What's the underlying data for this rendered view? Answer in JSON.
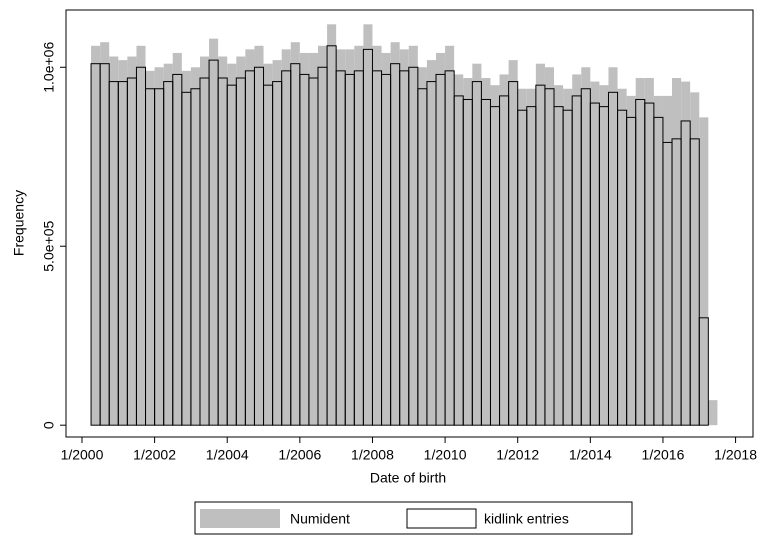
{
  "chart_data": {
    "type": "histogram",
    "x_label": "Date of birth",
    "y_label": "Frequency",
    "bins": [
      2000.25,
      2000.5,
      2000.75,
      2001,
      2001.25,
      2001.5,
      2001.75,
      2002,
      2002.25,
      2002.5,
      2002.75,
      2003,
      2003.25,
      2003.5,
      2003.75,
      2004,
      2004.25,
      2004.5,
      2004.75,
      2005,
      2005.25,
      2005.5,
      2005.75,
      2006,
      2006.25,
      2006.5,
      2006.75,
      2007,
      2007.25,
      2007.5,
      2007.75,
      2008,
      2008.25,
      2008.5,
      2008.75,
      2009,
      2009.25,
      2009.5,
      2009.75,
      2010,
      2010.25,
      2010.5,
      2010.75,
      2011,
      2011.25,
      2011.5,
      2011.75,
      2012,
      2012.25,
      2012.5,
      2012.75,
      2013,
      2013.25,
      2013.5,
      2013.75,
      2014,
      2014.25,
      2014.5,
      2014.75,
      2015,
      2015.25,
      2015.5,
      2015.75,
      2016,
      2016.25,
      2016.5,
      2016.75,
      2017,
      2017.25,
      2017.5
    ],
    "series": [
      {
        "name": "Numident",
        "color": "#bfbfbf",
        "values": [
          1060000,
          1070000,
          1030000,
          1020000,
          1030000,
          1060000,
          990000,
          1000000,
          1010000,
          1040000,
          990000,
          1000000,
          1030000,
          1080000,
          1030000,
          1010000,
          1030000,
          1050000,
          1060000,
          1010000,
          1020000,
          1050000,
          1070000,
          1040000,
          1040000,
          1060000,
          1120000,
          1050000,
          1050000,
          1060000,
          1120000,
          1060000,
          1040000,
          1070000,
          1050000,
          1060000,
          1000000,
          1020000,
          1040000,
          1060000,
          980000,
          970000,
          1010000,
          970000,
          950000,
          980000,
          1020000,
          940000,
          940000,
          1010000,
          1000000,
          950000,
          940000,
          980000,
          1000000,
          960000,
          950000,
          1000000,
          940000,
          920000,
          970000,
          970000,
          920000,
          920000,
          970000,
          960000,
          930000,
          860000,
          70000
        ]
      },
      {
        "name": "kidlink entries",
        "color": "#000000",
        "values": [
          1010000,
          1010000,
          960000,
          960000,
          970000,
          1000000,
          940000,
          940000,
          960000,
          980000,
          930000,
          940000,
          970000,
          1020000,
          970000,
          950000,
          970000,
          990000,
          1000000,
          950000,
          960000,
          990000,
          1010000,
          980000,
          970000,
          1000000,
          1060000,
          990000,
          980000,
          990000,
          1050000,
          990000,
          980000,
          1010000,
          990000,
          1000000,
          940000,
          960000,
          980000,
          990000,
          920000,
          910000,
          960000,
          910000,
          890000,
          920000,
          960000,
          880000,
          890000,
          950000,
          940000,
          890000,
          880000,
          920000,
          940000,
          900000,
          890000,
          930000,
          880000,
          860000,
          910000,
          900000,
          860000,
          790000,
          800000,
          850000,
          800000,
          300000,
          null
        ]
      }
    ],
    "xlim": [
      1999.56,
      2018.48
    ],
    "xticks": [
      {
        "value": 2000,
        "label": "1/2000"
      },
      {
        "value": 2002,
        "label": "1/2002"
      },
      {
        "value": 2004,
        "label": "1/2004"
      },
      {
        "value": 2006,
        "label": "1/2006"
      },
      {
        "value": 2008,
        "label": "1/2008"
      },
      {
        "value": 2010,
        "label": "1/2010"
      },
      {
        "value": 2012,
        "label": "1/2012"
      },
      {
        "value": 2014,
        "label": "1/2014"
      },
      {
        "value": 2016,
        "label": "1/2016"
      },
      {
        "value": 2018,
        "label": "1/2018"
      }
    ],
    "ylim": [
      -33000,
      1160000
    ],
    "yticks": [
      0,
      {
        "value": 500000,
        "label": "5.0e+05"
      },
      {
        "value": 1000000,
        "label": "1.0e+06"
      }
    ],
    "legend": "bottom"
  }
}
